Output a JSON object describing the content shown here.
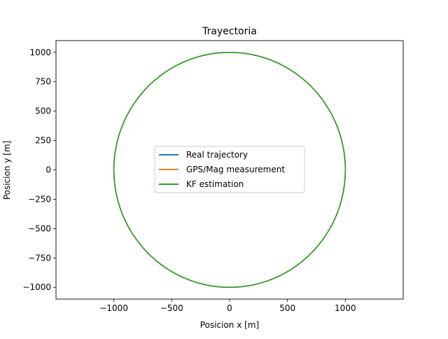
{
  "chart_data": {
    "type": "line",
    "title": "Trayectoria",
    "xlabel": "Posicion x [m]",
    "ylabel": "Posicion y [m]",
    "xlim": [
      -1500,
      1500
    ],
    "ylim": [
      -1100,
      1100
    ],
    "xticks": [
      -1000,
      -500,
      0,
      500,
      1000
    ],
    "xtick_labels": [
      "−1000",
      "−500",
      "0",
      "500",
      "1000"
    ],
    "yticks": [
      1000,
      750,
      500,
      250,
      0,
      -250,
      -500,
      -750,
      -1000
    ],
    "ytick_labels": [
      "1000",
      "750",
      "500",
      "250",
      "0",
      "−250",
      "−500",
      "−750",
      "−1000"
    ],
    "grid": false,
    "legend_position": "center",
    "series": [
      {
        "name": "Real trajectory",
        "color": "#1f77b4",
        "shape": "circle",
        "center": [
          0,
          0
        ],
        "radius": 1000
      },
      {
        "name": "GPS/Mag measurement",
        "color": "#ff7f0e",
        "shape": "circle",
        "center": [
          0,
          0
        ],
        "radius": 1000
      },
      {
        "name": "KF estimation",
        "color": "#2ca02c",
        "shape": "circle",
        "center": [
          0,
          0
        ],
        "radius": 1000
      }
    ]
  }
}
